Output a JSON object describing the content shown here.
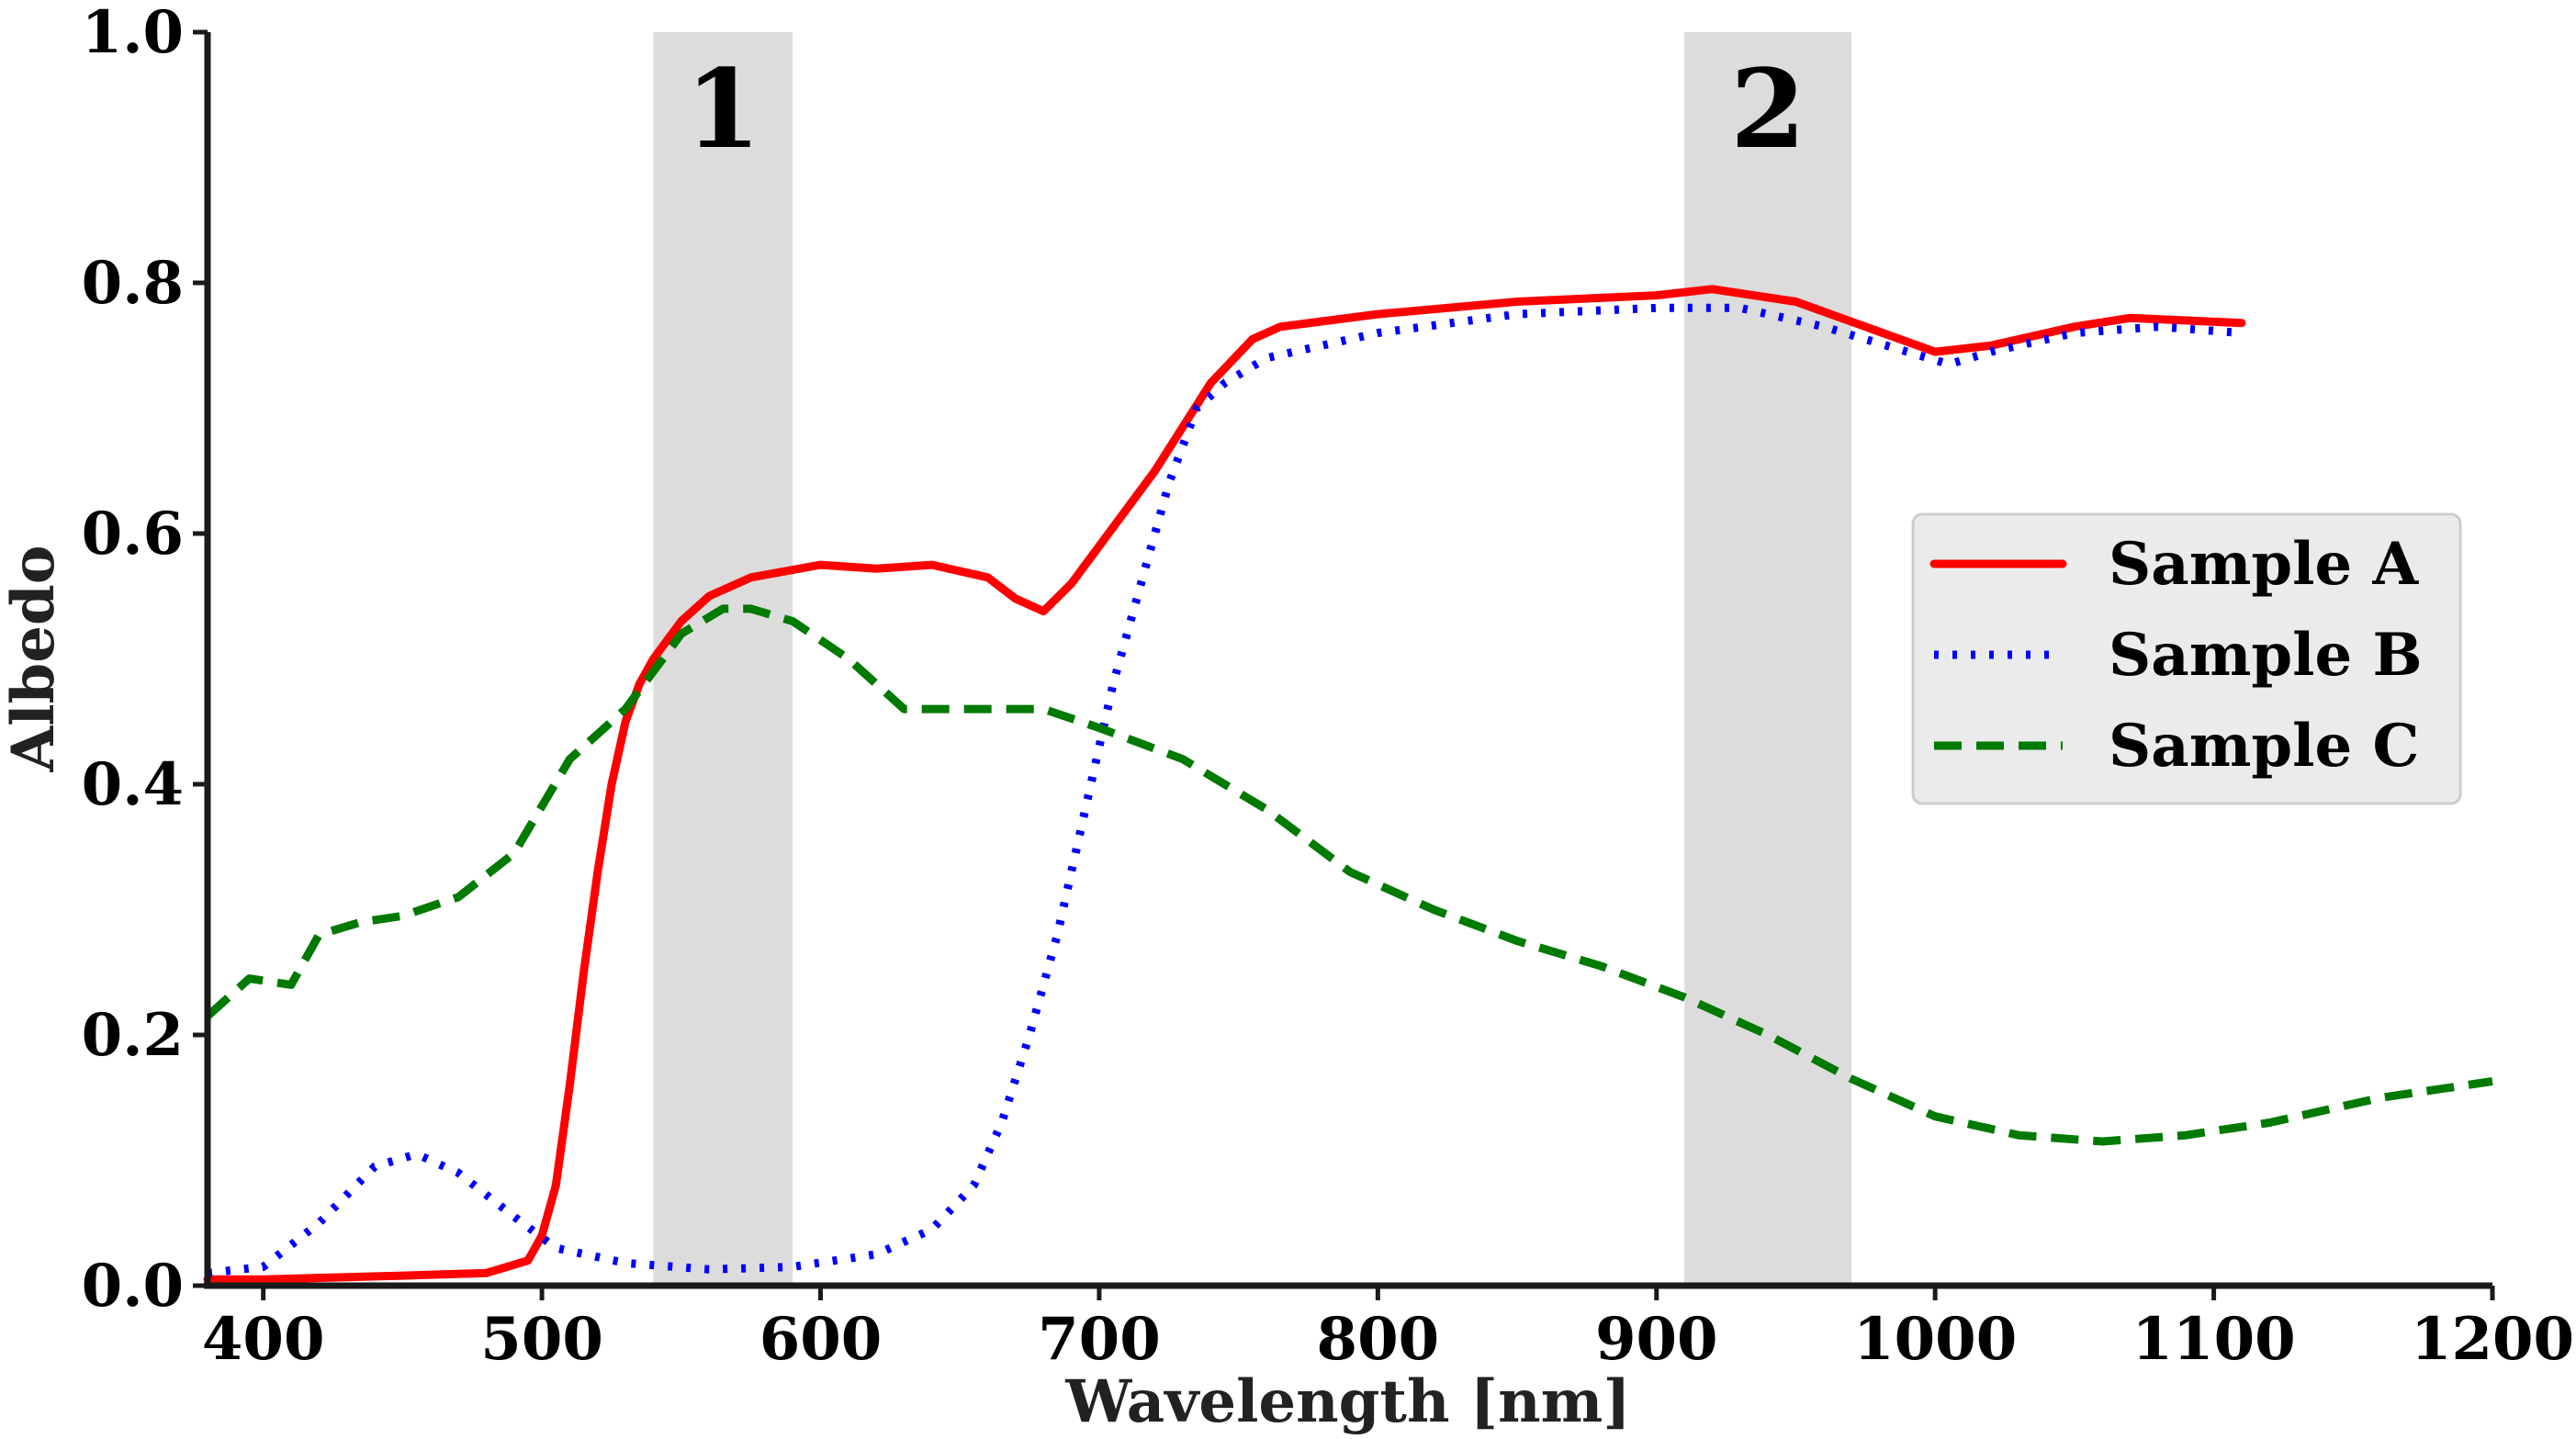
{
  "chart_data": {
    "type": "line",
    "title": "",
    "xlabel": "Wavelength [nm]",
    "ylabel": "Albedo",
    "xlim": [
      380,
      1200
    ],
    "ylim": [
      0,
      1.0
    ],
    "x_ticks": [
      400,
      500,
      600,
      700,
      800,
      900,
      1000,
      1100,
      1200
    ],
    "x_tick_labels": [
      "400",
      "500",
      "600",
      "700",
      "800",
      "900",
      "1000",
      "1100",
      "1200"
    ],
    "y_ticks": [
      0,
      0.2,
      0.4,
      0.6,
      0.8,
      1.0
    ],
    "y_tick_labels": [
      "0.0",
      "0.2",
      "0.4",
      "0.6",
      "0.8",
      "1.0"
    ],
    "grid": false,
    "legend_position": "right",
    "bands": [
      {
        "label": "1",
        "from": 540,
        "to": 590,
        "color": "#dcdcdc"
      },
      {
        "label": "2",
        "from": 910,
        "to": 970,
        "color": "#dcdcdc"
      }
    ],
    "series": [
      {
        "name": "Sample A",
        "color": "#ff0000",
        "style": "solid",
        "points": [
          [
            380,
            0.005
          ],
          [
            400,
            0.005
          ],
          [
            450,
            0.008
          ],
          [
            480,
            0.01
          ],
          [
            495,
            0.02
          ],
          [
            500,
            0.04
          ],
          [
            505,
            0.08
          ],
          [
            510,
            0.16
          ],
          [
            515,
            0.25
          ],
          [
            520,
            0.33
          ],
          [
            525,
            0.4
          ],
          [
            530,
            0.45
          ],
          [
            535,
            0.48
          ],
          [
            540,
            0.5
          ],
          [
            550,
            0.53
          ],
          [
            560,
            0.55
          ],
          [
            575,
            0.565
          ],
          [
            600,
            0.575
          ],
          [
            620,
            0.572
          ],
          [
            640,
            0.575
          ],
          [
            660,
            0.565
          ],
          [
            670,
            0.548
          ],
          [
            680,
            0.538
          ],
          [
            690,
            0.56
          ],
          [
            700,
            0.59
          ],
          [
            720,
            0.65
          ],
          [
            740,
            0.72
          ],
          [
            755,
            0.755
          ],
          [
            765,
            0.765
          ],
          [
            800,
            0.775
          ],
          [
            850,
            0.785
          ],
          [
            900,
            0.79
          ],
          [
            920,
            0.795
          ],
          [
            950,
            0.785
          ],
          [
            1000,
            0.745
          ],
          [
            1020,
            0.75
          ],
          [
            1050,
            0.765
          ],
          [
            1070,
            0.772
          ],
          [
            1110,
            0.768
          ]
        ]
      },
      {
        "name": "Sample B",
        "color": "#0000ff",
        "style": "dotted",
        "points": [
          [
            380,
            0.01
          ],
          [
            400,
            0.015
          ],
          [
            420,
            0.05
          ],
          [
            440,
            0.095
          ],
          [
            455,
            0.105
          ],
          [
            470,
            0.09
          ],
          [
            490,
            0.055
          ],
          [
            505,
            0.03
          ],
          [
            530,
            0.018
          ],
          [
            560,
            0.013
          ],
          [
            590,
            0.015
          ],
          [
            620,
            0.025
          ],
          [
            640,
            0.045
          ],
          [
            655,
            0.08
          ],
          [
            665,
            0.13
          ],
          [
            675,
            0.2
          ],
          [
            685,
            0.28
          ],
          [
            695,
            0.38
          ],
          [
            705,
            0.48
          ],
          [
            715,
            0.56
          ],
          [
            725,
            0.64
          ],
          [
            735,
            0.7
          ],
          [
            745,
            0.72
          ],
          [
            760,
            0.74
          ],
          [
            800,
            0.76
          ],
          [
            850,
            0.775
          ],
          [
            900,
            0.78
          ],
          [
            930,
            0.78
          ],
          [
            960,
            0.765
          ],
          [
            1005,
            0.735
          ],
          [
            1020,
            0.745
          ],
          [
            1050,
            0.76
          ],
          [
            1080,
            0.765
          ],
          [
            1110,
            0.76
          ]
        ]
      },
      {
        "name": "Sample C",
        "color": "#007a00",
        "style": "dashed",
        "points": [
          [
            380,
            0.215
          ],
          [
            395,
            0.245
          ],
          [
            410,
            0.24
          ],
          [
            420,
            0.28
          ],
          [
            435,
            0.29
          ],
          [
            450,
            0.295
          ],
          [
            470,
            0.31
          ],
          [
            490,
            0.345
          ],
          [
            510,
            0.42
          ],
          [
            530,
            0.46
          ],
          [
            550,
            0.52
          ],
          [
            565,
            0.54
          ],
          [
            575,
            0.54
          ],
          [
            590,
            0.53
          ],
          [
            610,
            0.5
          ],
          [
            630,
            0.46
          ],
          [
            650,
            0.46
          ],
          [
            670,
            0.46
          ],
          [
            680,
            0.46
          ],
          [
            700,
            0.445
          ],
          [
            730,
            0.42
          ],
          [
            760,
            0.38
          ],
          [
            790,
            0.33
          ],
          [
            820,
            0.3
          ],
          [
            850,
            0.275
          ],
          [
            880,
            0.255
          ],
          [
            910,
            0.23
          ],
          [
            940,
            0.2
          ],
          [
            970,
            0.165
          ],
          [
            1000,
            0.135
          ],
          [
            1030,
            0.12
          ],
          [
            1060,
            0.115
          ],
          [
            1090,
            0.12
          ],
          [
            1120,
            0.13
          ],
          [
            1160,
            0.15
          ],
          [
            1200,
            0.163
          ]
        ]
      }
    ]
  }
}
